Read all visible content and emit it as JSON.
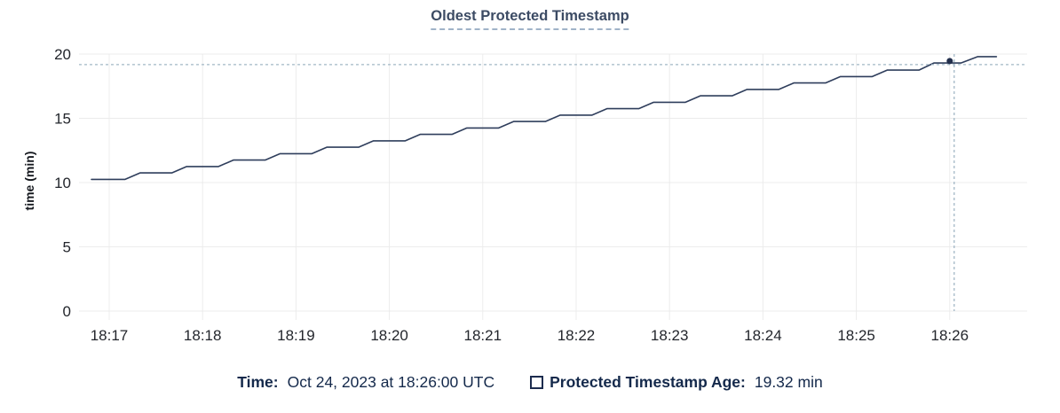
{
  "header": {
    "title": "Oldest Protected Timestamp"
  },
  "chart_data": {
    "type": "line",
    "title": "Oldest Protected Timestamp",
    "xlabel": "",
    "ylabel": "time (min)",
    "x_tick_labels": [
      "18:17",
      "18:18",
      "18:19",
      "18:20",
      "18:21",
      "18:22",
      "18:23",
      "18:24",
      "18:25",
      "18:26"
    ],
    "x_tick_minutes": [
      0,
      1,
      2,
      3,
      4,
      5,
      6,
      7,
      8,
      9
    ],
    "y_ticks": [
      0,
      5,
      10,
      15,
      20
    ],
    "ylim": [
      0,
      20
    ],
    "xlim_minutes": [
      -0.33,
      9.83
    ],
    "grid": true,
    "legend_position": "bottom",
    "series": [
      {
        "name": "Protected Timestamp Age",
        "unit": "min",
        "points": [
          [
            -0.19,
            10.25
          ],
          [
            0.17,
            10.25
          ],
          [
            0.33,
            10.75
          ],
          [
            0.67,
            10.75
          ],
          [
            0.83,
            11.25
          ],
          [
            1.17,
            11.25
          ],
          [
            1.33,
            11.75
          ],
          [
            1.67,
            11.75
          ],
          [
            1.83,
            12.25
          ],
          [
            2.17,
            12.25
          ],
          [
            2.33,
            12.75
          ],
          [
            2.67,
            12.75
          ],
          [
            2.83,
            13.25
          ],
          [
            3.17,
            13.25
          ],
          [
            3.33,
            13.75
          ],
          [
            3.67,
            13.75
          ],
          [
            3.83,
            14.25
          ],
          [
            4.17,
            14.25
          ],
          [
            4.33,
            14.75
          ],
          [
            4.67,
            14.75
          ],
          [
            4.83,
            15.25
          ],
          [
            5.17,
            15.25
          ],
          [
            5.33,
            15.75
          ],
          [
            5.67,
            15.75
          ],
          [
            5.83,
            16.25
          ],
          [
            6.17,
            16.25
          ],
          [
            6.33,
            16.75
          ],
          [
            6.67,
            16.75
          ],
          [
            6.83,
            17.25
          ],
          [
            7.17,
            17.25
          ],
          [
            7.33,
            17.75
          ],
          [
            7.67,
            17.75
          ],
          [
            7.83,
            18.25
          ],
          [
            8.17,
            18.25
          ],
          [
            8.33,
            18.75
          ],
          [
            8.67,
            18.75
          ],
          [
            8.83,
            19.3
          ],
          [
            9.12,
            19.3
          ],
          [
            9.3,
            19.8
          ],
          [
            9.5,
            19.8
          ]
        ]
      }
    ],
    "hover": {
      "t_min": 9.0,
      "value": 19.32,
      "time_label": "Oct 24, 2023 at 18:26:00 UTC",
      "value_label": "19.32 min"
    }
  },
  "legend": {
    "time_key": "Time:",
    "time_value": "Oct 24, 2023 at 18:26:00 UTC",
    "series_key": "Protected Timestamp Age:",
    "series_value": "19.32 min"
  },
  "colors": {
    "grid": "#ececec",
    "tick_text": "#23262c",
    "line": "#2f3e5c",
    "dot": "#222f4c",
    "crosshair": "#a2b7c6",
    "title": "#3c4b64",
    "legend_text": "#14294b"
  }
}
